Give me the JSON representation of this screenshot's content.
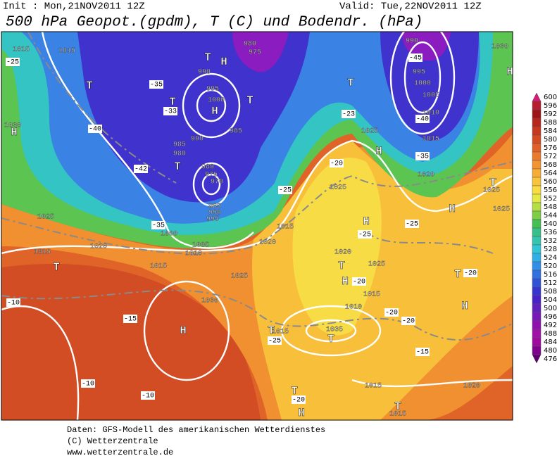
{
  "header": {
    "init": "Init : Mon,21NOV2011 12Z",
    "valid": "Valid: Tue,22NOV2011 12Z",
    "title": "500 hPa Geopot.(gpdm), T (C) und Bodendr. (hPa)"
  },
  "map": {
    "labels": [
      "H",
      "T",
      "980",
      "975",
      "990",
      "T",
      "-35",
      "T",
      "995",
      "1000",
      "H",
      "-33",
      "T",
      "985",
      "990",
      "985",
      "980",
      "T",
      "-42",
      "980",
      "975",
      "970",
      "985",
      "990",
      "995",
      "-35",
      "1000",
      "1005",
      "1010",
      "1015",
      "1025",
      "1020",
      "1015",
      "T",
      "1025",
      "1030",
      "H",
      "-10",
      "-15",
      "-10",
      "-10",
      "-25",
      "1015",
      "1015",
      "H",
      "1030",
      "-40",
      "-45",
      "990",
      "995",
      "1000",
      "1005",
      "1010",
      "-40",
      "1015",
      "-35",
      "1020",
      "H",
      "T",
      "-23",
      "1025",
      "1030",
      "H",
      "T",
      "1025",
      "1025",
      "H",
      "-20",
      "1025",
      "-25",
      "1015",
      "1020",
      "-25",
      "-25",
      "H",
      "1020",
      "T",
      "H",
      "-20",
      "1025",
      "1015",
      "-20",
      "T",
      "H",
      "1010",
      "-20",
      "-20",
      "1035",
      "T",
      "T",
      "1015",
      "-25",
      "-15",
      "1020",
      "1015",
      "T",
      "-20",
      "H",
      "T",
      "1015"
    ]
  },
  "colorbar": {
    "levels": [
      {
        "value": 600,
        "color": "#d81b78"
      },
      {
        "value": 596,
        "color": "#b71c30"
      },
      {
        "value": 592,
        "color": "#a01418"
      },
      {
        "value": 588,
        "color": "#b8261a"
      },
      {
        "value": 584,
        "color": "#c8381e"
      },
      {
        "value": 580,
        "color": "#d64c22"
      },
      {
        "value": 576,
        "color": "#e26028"
      },
      {
        "value": 572,
        "color": "#ec7a2c"
      },
      {
        "value": 568,
        "color": "#f49430"
      },
      {
        "value": 564,
        "color": "#f8ac32"
      },
      {
        "value": 560,
        "color": "#fac43a"
      },
      {
        "value": 556,
        "color": "#f8dc42"
      },
      {
        "value": 552,
        "color": "#e4ea44"
      },
      {
        "value": 548,
        "color": "#b4de44"
      },
      {
        "value": 544,
        "color": "#7cce44"
      },
      {
        "value": 540,
        "color": "#44c052"
      },
      {
        "value": 536,
        "color": "#34c088"
      },
      {
        "value": 532,
        "color": "#32c6b0"
      },
      {
        "value": 528,
        "color": "#30c6d6"
      },
      {
        "value": 524,
        "color": "#30b0e8"
      },
      {
        "value": 520,
        "color": "#3090e8"
      },
      {
        "value": 516,
        "color": "#3070e0"
      },
      {
        "value": 512,
        "color": "#3052d8"
      },
      {
        "value": 508,
        "color": "#3834d0"
      },
      {
        "value": 504,
        "color": "#4822c8"
      },
      {
        "value": 500,
        "color": "#6020c0"
      },
      {
        "value": 496,
        "color": "#7818b8"
      },
      {
        "value": 492,
        "color": "#9010b0"
      },
      {
        "value": 488,
        "color": "#a010a8"
      },
      {
        "value": 484,
        "color": "#a008a0"
      },
      {
        "value": 480,
        "color": "#800090"
      },
      {
        "value": 476,
        "color": "#600070"
      }
    ]
  },
  "footer": {
    "lines": [
      "Daten: GFS-Modell des amerikanischen Wetterdienstes",
      "(C) Wetterzentrale",
      "www.wetterzentrale.de"
    ]
  }
}
